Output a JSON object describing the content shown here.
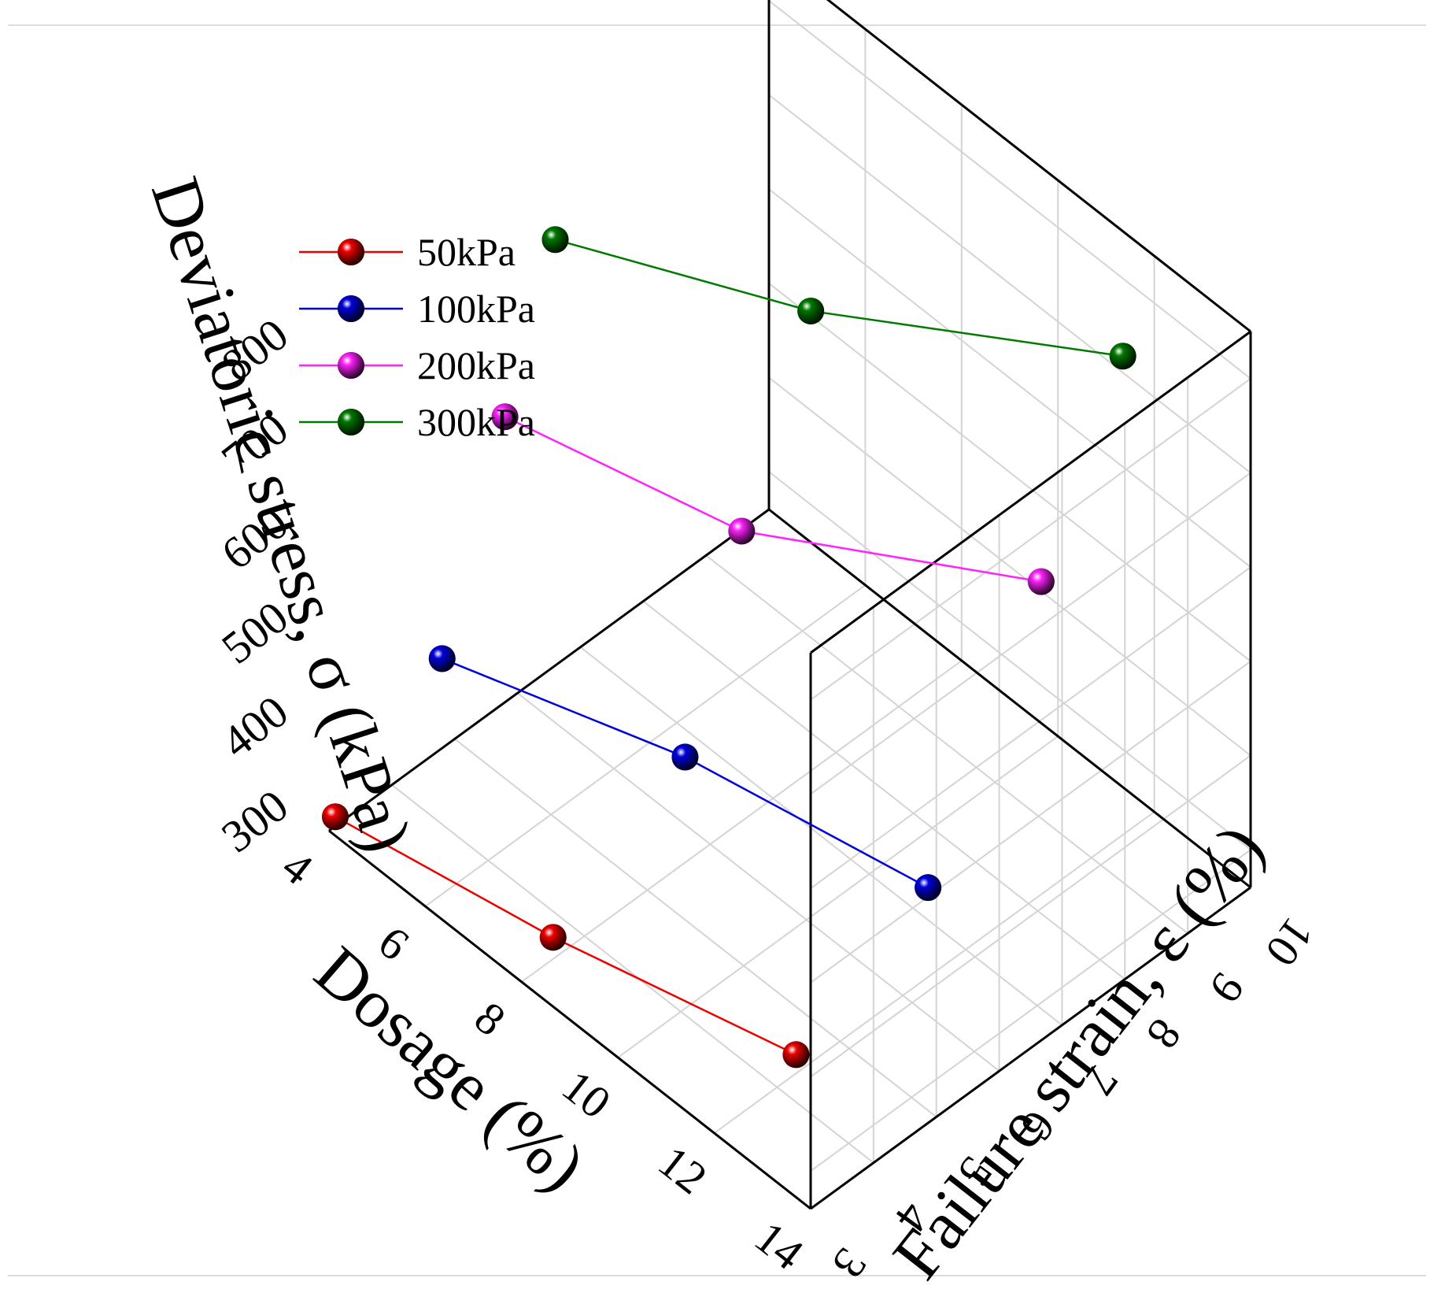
{
  "chart_data": {
    "type": "scatter3d",
    "title": "",
    "xlabel": "Dosage (%)",
    "ylabel": "Failure strain,  ε (%)",
    "zlabel": "Deviatoric stress,  σ (kPa)",
    "x_ticks": [
      "4",
      "6",
      "8",
      "10",
      "12",
      "14"
    ],
    "y_ticks": [
      "3",
      "4",
      "5",
      "6",
      "7",
      "8",
      "9",
      "10"
    ],
    "z_ticks": [
      "300",
      "400",
      "500",
      "600",
      "700",
      "800"
    ],
    "xlim": [
      4,
      14
    ],
    "ylim": [
      3,
      10
    ],
    "zlim": [
      260,
      850
    ],
    "grid": true,
    "legend_position": "top-left",
    "series": [
      {
        "name": "50kPa",
        "color": "#ee0000",
        "points": [
          {
            "x": 4,
            "y": 3.1,
            "z": 270
          },
          {
            "x": 8,
            "y": 3.5,
            "z": 283
          },
          {
            "x": 12,
            "y": 4.3,
            "z": 280
          }
        ]
      },
      {
        "name": "100kPa",
        "color": "#0000dd",
        "points": [
          {
            "x": 4,
            "y": 4.8,
            "z": 355
          },
          {
            "x": 8,
            "y": 5.6,
            "z": 372
          },
          {
            "x": 12,
            "y": 6.4,
            "z": 355
          }
        ]
      },
      {
        "name": "200kPa",
        "color": "#ff22ff",
        "points": [
          {
            "x": 4,
            "y": 5.8,
            "z": 563
          },
          {
            "x": 8,
            "y": 6.5,
            "z": 568
          },
          {
            "x": 12,
            "y": 8.2,
            "z": 592
          }
        ]
      },
      {
        "name": "300kPa",
        "color": "#007a00",
        "points": [
          {
            "x": 4,
            "y": 6.6,
            "z": 712
          },
          {
            "x": 8,
            "y": 7.6,
            "z": 748
          },
          {
            "x": 12,
            "y": 9.5,
            "z": 768
          }
        ]
      }
    ]
  }
}
